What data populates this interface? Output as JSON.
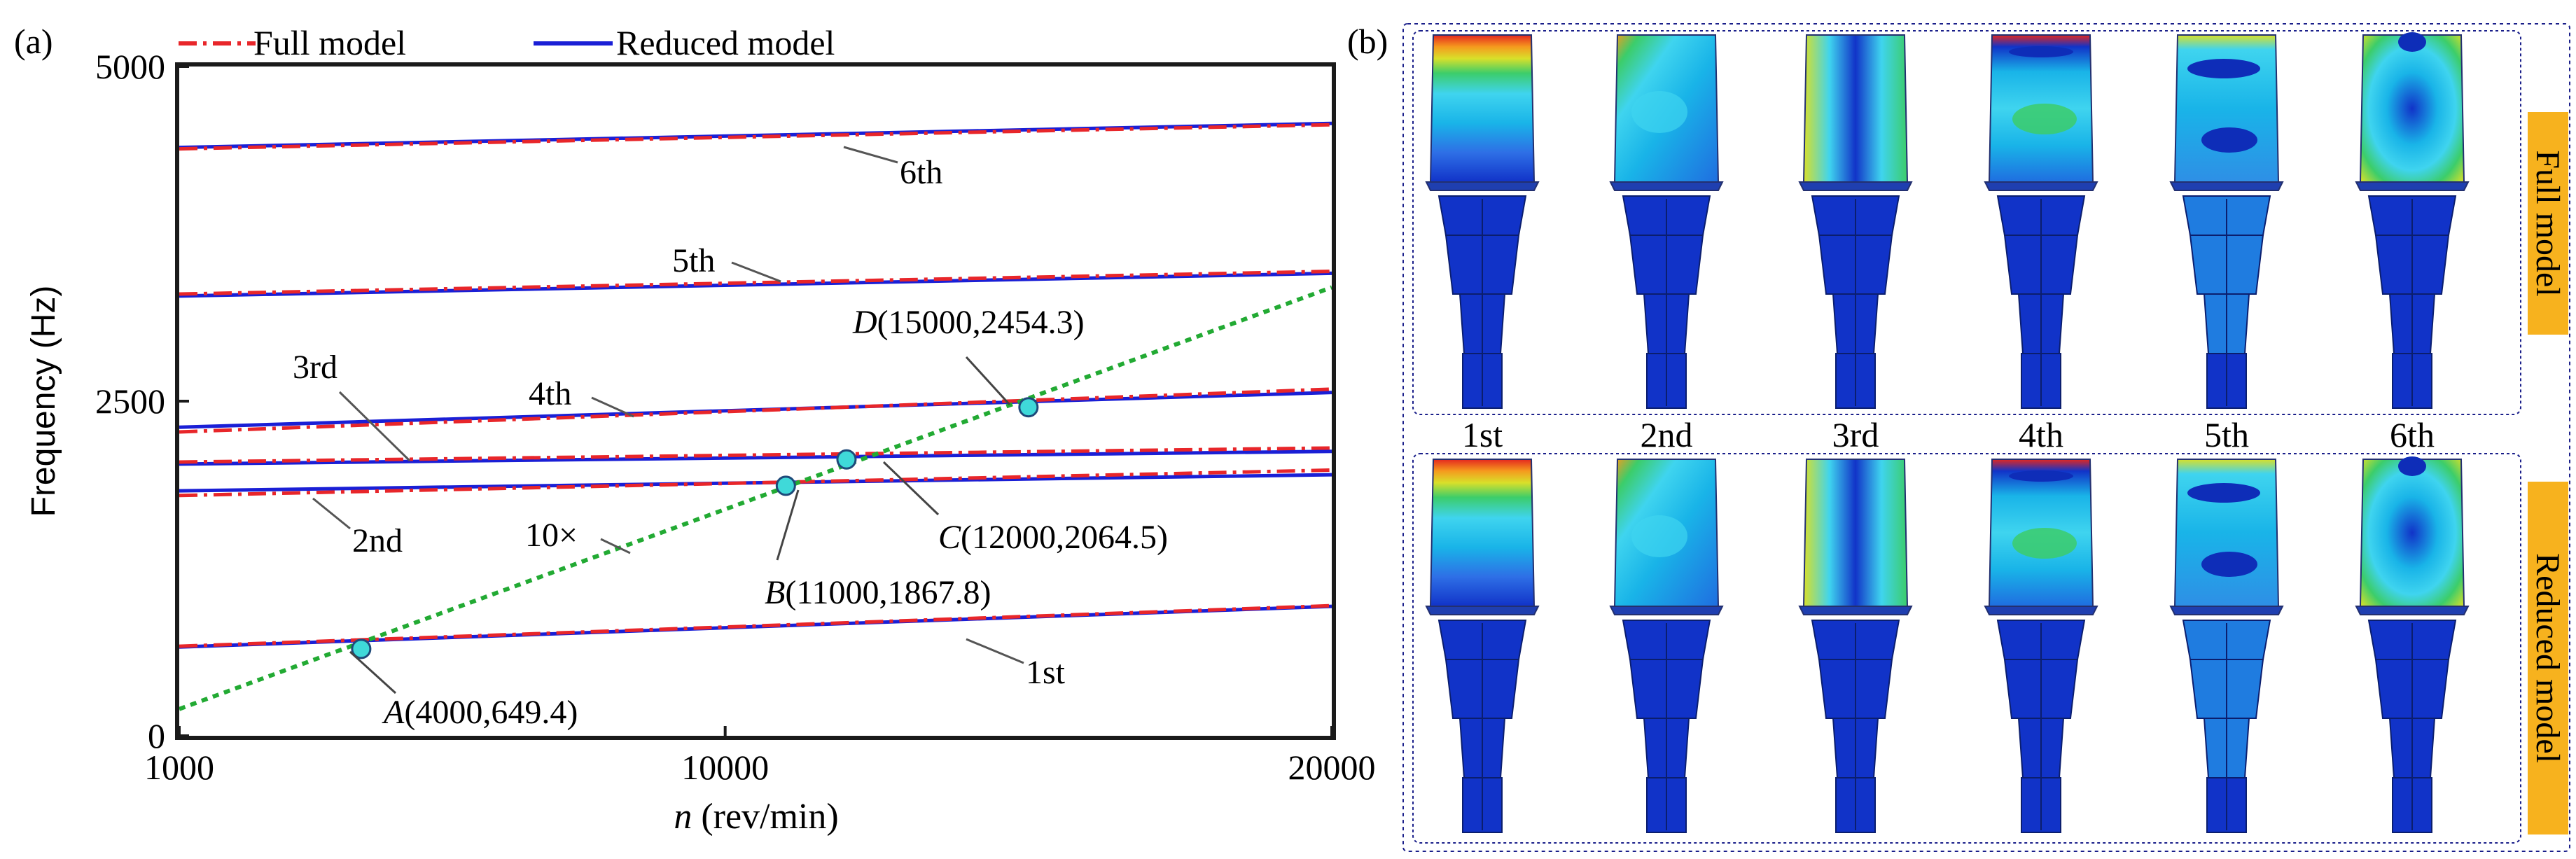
{
  "panel_labels": {
    "a": "(a)",
    "b": "(b)"
  },
  "legend": [
    {
      "label": "Full model",
      "color": "#e8262a",
      "style": "dash-dot"
    },
    {
      "label": "Reduced model",
      "color": "#1a1fd6",
      "style": "solid"
    }
  ],
  "chart_data": {
    "type": "line",
    "xlabel_italic": "n",
    "xlabel_rest": " (rev/min)",
    "ylabel": "Frequency (Hz)",
    "xlim": [
      1000,
      20000
    ],
    "ylim": [
      0,
      5000
    ],
    "x_ticks": [
      {
        "value": 1000,
        "label": "1000"
      },
      {
        "value": 10000,
        "label": "10000"
      },
      {
        "value": 20000,
        "label": "20000"
      }
    ],
    "y_ticks": [
      {
        "value": 0,
        "label": "0"
      },
      {
        "value": 2500,
        "label": "2500"
      },
      {
        "value": 5000,
        "label": "5000"
      }
    ],
    "grid": false,
    "legend_position": "top",
    "x": [
      1000,
      20000
    ],
    "series": [
      {
        "name": "1st",
        "full": [
          669,
          972
        ],
        "reduced": [
          663,
          967
        ]
      },
      {
        "name": "2nd",
        "full": [
          1795,
          1985
        ],
        "reduced": [
          1830,
          1950
        ]
      },
      {
        "name": "3rd",
        "full": [
          2045,
          2150
        ],
        "reduced": [
          2030,
          2125
        ]
      },
      {
        "name": "4th",
        "full": [
          2270,
          2590
        ],
        "reduced": [
          2305,
          2565
        ]
      },
      {
        "name": "5th",
        "full": [
          3300,
          3470
        ],
        "reduced": [
          3285,
          3455
        ]
      },
      {
        "name": "6th",
        "full": [
          4385,
          4565
        ],
        "reduced": [
          4395,
          4575
        ]
      }
    ],
    "excitation_line": {
      "name": "10×",
      "color": "#22aa33",
      "x": [
        1000,
        20000
      ],
      "y": [
        200,
        3350
      ]
    },
    "points": [
      {
        "letter": "A",
        "coords": "(4000,649.4)",
        "x": 4000,
        "y": 649.4
      },
      {
        "letter": "B",
        "coords": "(11000,1867.8)",
        "x": 11000,
        "y": 1867.8
      },
      {
        "letter": "C",
        "coords": "(12000,2064.5)",
        "x": 12000,
        "y": 2064.5
      },
      {
        "letter": "D",
        "coords": "(15000,2454.3)",
        "x": 15000,
        "y": 2454.3
      }
    ],
    "point_color": "#3fd9d9"
  },
  "mode_shapes": {
    "modes": [
      "1st",
      "2nd",
      "3rd",
      "4th",
      "5th",
      "6th"
    ],
    "rows": [
      {
        "label": "Full model"
      },
      {
        "label": "Reduced model"
      }
    ],
    "label_box_color": "#f7b21e",
    "colors": {
      "base_blue": "#1133c8",
      "dark_blue": "#0e2db8",
      "cyan": "#19b4e8",
      "light_cyan": "#3fd4ef",
      "green": "#3ccd6a",
      "yellow": "#d8e02a",
      "orange": "#f59a1e",
      "red": "#e4271f",
      "blade_light": "#2e8fe6"
    }
  }
}
